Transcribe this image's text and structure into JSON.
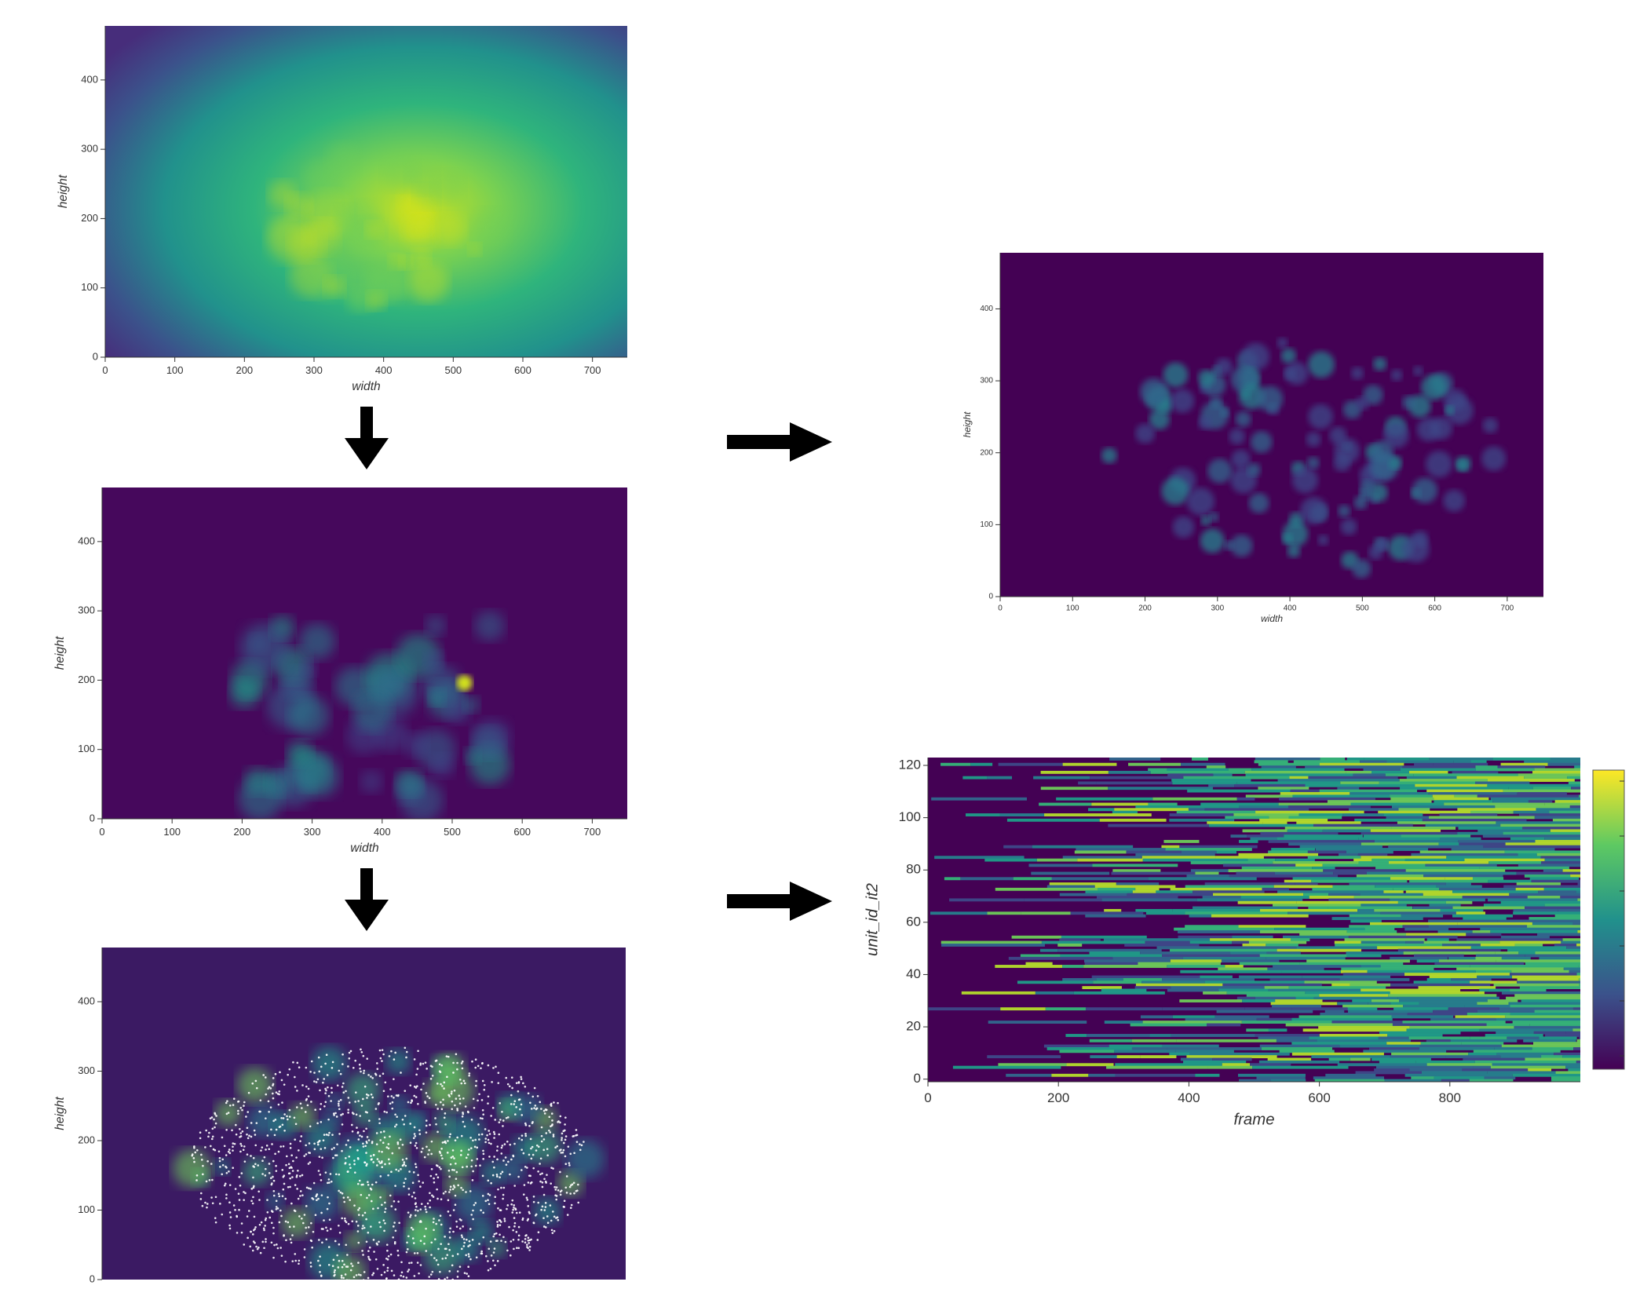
{
  "chart_data": [
    {
      "type": "image",
      "xlabel": "width",
      "ylabel": "height",
      "xlim": [
        0,
        750
      ],
      "ylim": [
        0,
        478
      ],
      "xticks": [
        0,
        100,
        200,
        300,
        400,
        500,
        600,
        700
      ],
      "yticks": [
        0,
        100,
        200,
        300,
        400
      ]
    },
    {
      "type": "image",
      "xlabel": "width",
      "ylabel": "height",
      "xlim": [
        0,
        750
      ],
      "ylim": [
        0,
        478
      ],
      "xticks": [
        0,
        100,
        200,
        300,
        400,
        500,
        600,
        700
      ],
      "yticks": [
        0,
        100,
        200,
        300,
        400
      ]
    },
    {
      "type": "image",
      "ylabel": "height",
      "xlim": [
        0,
        750
      ],
      "ylim": [
        0,
        478
      ],
      "yticks": [
        0,
        100,
        200,
        300,
        400
      ]
    },
    {
      "type": "image",
      "xlabel": "width",
      "ylabel": "height",
      "xlim": [
        0,
        750
      ],
      "ylim": [
        0,
        478
      ],
      "xticks": [
        0,
        100,
        200,
        300,
        400,
        500,
        600,
        700
      ],
      "yticks": [
        0,
        100,
        200,
        300,
        400
      ]
    },
    {
      "type": "raster",
      "xlabel": "frame",
      "ylabel": "unit_id_it2",
      "xlim": [
        0,
        1000
      ],
      "ylim": [
        -1,
        123
      ],
      "xticks": [
        0,
        200,
        400,
        600,
        800
      ],
      "yticks": [
        0,
        20,
        40,
        60,
        80,
        100,
        120
      ],
      "colorbar": true
    }
  ]
}
